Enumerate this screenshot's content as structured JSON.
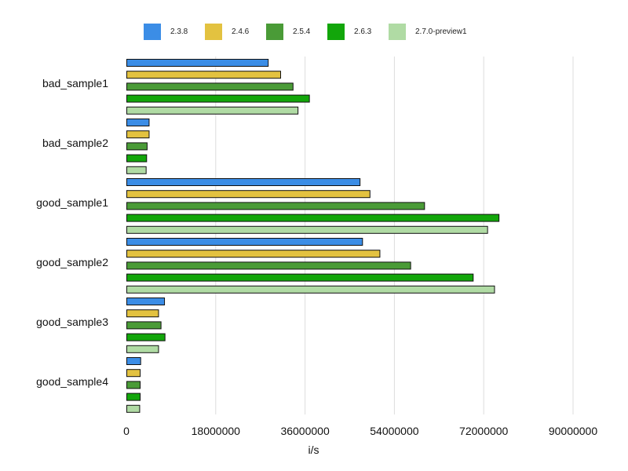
{
  "chart_data": {
    "type": "bar",
    "orientation": "horizontal",
    "title": "",
    "xlabel": "i/s",
    "ylabel": "",
    "xlim": [
      0,
      90000000
    ],
    "x_ticks": [
      "0",
      "18000000",
      "36000000",
      "54000000",
      "72000000",
      "90000000"
    ],
    "grid": "vertical",
    "legend_position": "top",
    "categories": [
      "bad_sample1",
      "bad_sample2",
      "good_sample1",
      "good_sample2",
      "good_sample3",
      "good_sample4"
    ],
    "series": [
      {
        "name": "2.3.8",
        "color": "#3b8de6",
        "values": [
          28500000,
          4500000,
          47000000,
          47500000,
          7600000,
          2800000
        ]
      },
      {
        "name": "2.4.6",
        "color": "#e3c240",
        "values": [
          31000000,
          4500000,
          49000000,
          51000000,
          6400000,
          2700000
        ]
      },
      {
        "name": "2.5.4",
        "color": "#4a9b37",
        "values": [
          33500000,
          4100000,
          60000000,
          57200000,
          6900000,
          2700000
        ]
      },
      {
        "name": "2.6.3",
        "color": "#12a60a",
        "values": [
          36800000,
          4000000,
          75000000,
          69800000,
          7700000,
          2700000
        ]
      },
      {
        "name": "2.7.0-preview1",
        "color": "#b0dba4",
        "values": [
          34500000,
          3900000,
          72700000,
          74100000,
          6400000,
          2600000
        ]
      }
    ]
  }
}
